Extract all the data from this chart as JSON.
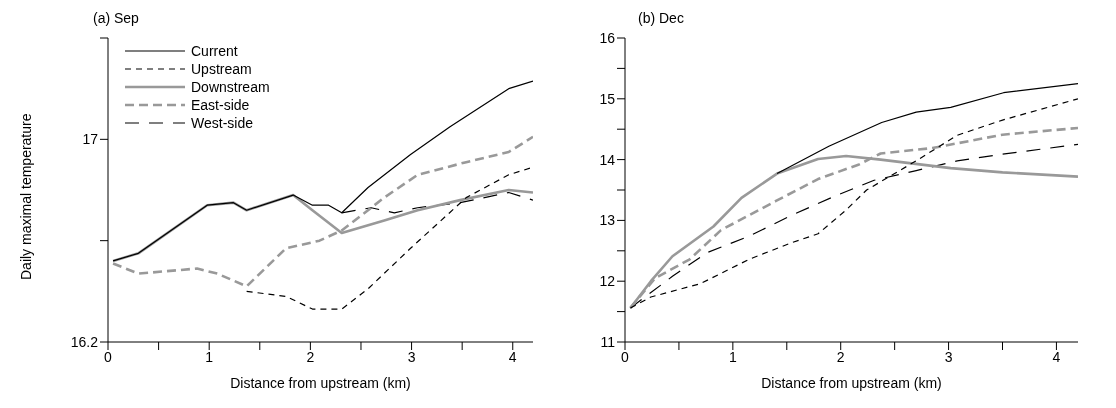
{
  "chart_data": [
    {
      "type": "line",
      "title": "(a) Sep",
      "xlabel": "Distance from upstream (km)",
      "ylabel": "Daily maximal temperature",
      "xlim": [
        0,
        4.2
      ],
      "xticks": [
        0,
        {
          "value": 0.5,
          "label": null
        },
        1,
        {
          "value": 1.5,
          "label": null
        },
        2,
        {
          "value": 2.5,
          "label": null
        },
        3,
        {
          "value": 3.5,
          "label": null
        },
        4
      ],
      "ylim": [
        16.2,
        17.4
      ],
      "yticks": [
        16.2,
        {
          "value": 16.6,
          "label": null
        },
        17,
        {
          "value": 17.4,
          "label": null
        }
      ],
      "legend": "top left",
      "grid": false,
      "marker": "none",
      "series": [
        {
          "name": "Current",
          "color": "#000000",
          "line_style": "solid",
          "x": [
            0.05,
            0.3,
            0.98,
            1.24,
            1.37,
            1.83,
            2.02,
            2.18,
            2.31,
            2.57,
            2.99,
            3.38,
            3.96,
            4.2
          ],
          "values": [
            16.52,
            16.55,
            16.74,
            16.75,
            16.72,
            16.78,
            16.74,
            16.74,
            16.71,
            16.81,
            16.94,
            17.05,
            17.2,
            17.23
          ]
        },
        {
          "name": "Upstream",
          "color": "#000000",
          "line_style": "dashed",
          "x": [
            1.37,
            1.76,
            2.02,
            2.31,
            2.57,
            2.99,
            3.54,
            3.96,
            4.2
          ],
          "values": [
            16.4,
            16.38,
            16.33,
            16.33,
            16.41,
            16.57,
            16.77,
            16.86,
            16.89
          ]
        },
        {
          "name": "Downstream",
          "color": "#999999",
          "line_style": "solid",
          "x": [
            0.05,
            0.3,
            0.98,
            1.24,
            1.37,
            1.83,
            2.02,
            2.31,
            2.73,
            3.06,
            3.48,
            3.96,
            4.2
          ],
          "values": [
            16.52,
            16.55,
            16.74,
            16.75,
            16.72,
            16.78,
            16.72,
            16.63,
            16.68,
            16.72,
            16.76,
            16.8,
            16.79
          ]
        },
        {
          "name": "East-side",
          "color": "#999999",
          "line_style": "dashed",
          "x": [
            0.05,
            0.3,
            0.88,
            1.08,
            1.37,
            1.76,
            2.09,
            2.31,
            2.73,
            3.06,
            3.54,
            3.96,
            4.2
          ],
          "values": [
            16.51,
            16.47,
            16.49,
            16.47,
            16.42,
            16.57,
            16.6,
            16.64,
            16.77,
            16.86,
            16.91,
            16.95,
            17.01
          ]
        },
        {
          "name": "West-side",
          "color": "#000000",
          "line_style": "dashed",
          "x": [
            2.31,
            2.6,
            2.83,
            3.06,
            3.48,
            3.96,
            4.2
          ],
          "values": [
            16.71,
            16.73,
            16.71,
            16.73,
            16.75,
            16.79,
            16.76
          ]
        }
      ]
    },
    {
      "type": "line",
      "title": "(b) Dec",
      "xlabel": "Distance from upstream (km)",
      "xlim": [
        0,
        4.2
      ],
      "xticks": [
        0,
        {
          "value": 0.5,
          "label": null
        },
        1,
        {
          "value": 1.5,
          "label": null
        },
        2,
        {
          "value": 2.5,
          "label": null
        },
        3,
        {
          "value": 3.5,
          "label": null
        },
        4
      ],
      "ylim": [
        11,
        16
      ],
      "yticks": [
        11,
        {
          "value": 11.5,
          "label": null
        },
        12,
        {
          "value": 12.5,
          "label": null
        },
        13,
        {
          "value": 13.5,
          "label": null
        },
        14,
        {
          "value": 14.5,
          "label": null
        },
        15,
        {
          "value": 15.5,
          "label": null
        },
        16
      ],
      "grid": false,
      "marker": "none",
      "series": [
        {
          "color": "#000000",
          "line_style": "solid",
          "x": [
            1.41,
            1.89,
            2.38,
            2.7,
            3.02,
            3.51,
            4.2
          ],
          "values": [
            13.77,
            14.22,
            14.61,
            14.78,
            14.86,
            15.1,
            15.25
          ]
        },
        {
          "color": "#000000",
          "line_style": "dashed",
          "x": [
            0.05,
            0.24,
            0.7,
            1.15,
            1.54,
            1.79,
            2.05,
            2.24,
            2.7,
            3.08,
            3.5,
            4.2
          ],
          "values": [
            11.56,
            11.74,
            11.96,
            12.36,
            12.63,
            12.78,
            13.17,
            13.5,
            13.98,
            14.4,
            14.65,
            15.0
          ]
        },
        {
          "color": "#999999",
          "line_style": "solid",
          "x": [
            0.05,
            0.24,
            0.44,
            0.82,
            1.08,
            1.41,
            1.79,
            2.05,
            2.37,
            3.02,
            3.5,
            4.2
          ],
          "values": [
            11.56,
            12.0,
            12.41,
            12.9,
            13.37,
            13.77,
            14.01,
            14.06,
            14.0,
            13.86,
            13.79,
            13.72
          ]
        },
        {
          "color": "#999999",
          "line_style": "dashed",
          "x": [
            0.05,
            0.28,
            0.6,
            0.89,
            1.4,
            1.79,
            2.17,
            2.37,
            2.85,
            3.5,
            4.2
          ],
          "values": [
            11.56,
            12.05,
            12.36,
            12.84,
            13.32,
            13.68,
            13.92,
            14.1,
            14.19,
            14.41,
            14.52
          ]
        },
        {
          "color": "#000000",
          "line_style": "dashed",
          "x": [
            0.05,
            0.44,
            0.76,
            1.15,
            1.54,
            1.92,
            2.31,
            2.7,
            3.08,
            3.5,
            4.2
          ],
          "values": [
            11.56,
            12.08,
            12.47,
            12.74,
            13.08,
            13.38,
            13.66,
            13.82,
            13.98,
            14.09,
            14.25
          ]
        }
      ]
    }
  ]
}
